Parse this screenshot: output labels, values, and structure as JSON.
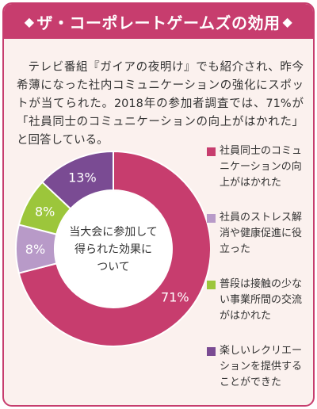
{
  "header": {
    "title": "ザ・コーポレートゲームズの効用",
    "left_icon": "diamond-icon",
    "right_icon": "diamond-icon"
  },
  "intro_text": "テレビ番組『ガイアの夜明け』でも紹介され、昨今希薄になった社内コミュニケーションの強化にスポットが当てられた。2018年の参加者調査では、71%が「社員同士のコミュニケーションの向上がはかれた」と回答している。",
  "chart_data": {
    "type": "pie",
    "variant": "donut",
    "center_label": "当大会に参加して得られた効果について",
    "center_lines": [
      "当大会に参加して",
      "得られた効果に",
      "ついて"
    ],
    "slices": [
      {
        "label": "社員同士のコミュニケーションの向上がはかれた",
        "value": 71,
        "value_label": "71%",
        "color": "#c73d6e"
      },
      {
        "label": "社員のストレス解消や健康促進に役立った",
        "value": 8,
        "value_label": "8%",
        "color": "#b89ac8"
      },
      {
        "label": "普段は接触の少ない事業所間の交流がはかれた",
        "value": 8,
        "value_label": "8%",
        "color": "#9cc63b"
      },
      {
        "label": "楽しいレクリエーションを提供することができた",
        "value": 13,
        "value_label": "13%",
        "color": "#7a4b93"
      }
    ],
    "legend": {
      "position": "right",
      "items": [
        {
          "lines": [
            "社員同士のコミュ",
            "ニケーションの向",
            "上がはかれた"
          ]
        },
        {
          "lines": [
            "社員のストレス解",
            "消や健康促進に役",
            "立った"
          ]
        },
        {
          "lines": [
            "普段は接触の少な",
            "い事業所間の交流",
            "がはかれた"
          ]
        },
        {
          "lines": [
            "楽しいレクリエー",
            "ションを提供する",
            "ことができた"
          ]
        }
      ]
    }
  }
}
